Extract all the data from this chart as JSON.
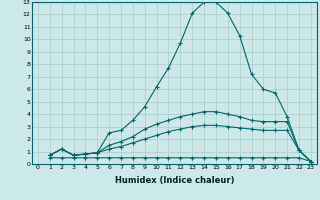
{
  "xlabel": "Humidex (Indice chaleur)",
  "ylabel": "",
  "bg_color": "#cce8e8",
  "grid_color": "#aacccc",
  "line_color": "#006868",
  "xlim": [
    -0.5,
    23.5
  ],
  "ylim": [
    0,
    13
  ],
  "xticks": [
    0,
    1,
    2,
    3,
    4,
    5,
    6,
    7,
    8,
    9,
    10,
    11,
    12,
    13,
    14,
    15,
    16,
    17,
    18,
    19,
    20,
    21,
    22,
    23
  ],
  "yticks": [
    0,
    1,
    2,
    3,
    4,
    5,
    6,
    7,
    8,
    9,
    10,
    11,
    12,
    13
  ],
  "line1_x": [
    1,
    2,
    3,
    4,
    5,
    6,
    7,
    8,
    9,
    10,
    11,
    12,
    13,
    14,
    15,
    16,
    17,
    18,
    19,
    20,
    21,
    22,
    23
  ],
  "line1_y": [
    0.7,
    1.2,
    0.7,
    0.8,
    0.9,
    2.5,
    2.7,
    3.5,
    4.6,
    6.2,
    7.7,
    9.7,
    12.1,
    13.0,
    13.0,
    12.1,
    10.3,
    7.2,
    6.0,
    5.7,
    3.8,
    1.1,
    0.2
  ],
  "line2_x": [
    1,
    2,
    3,
    4,
    5,
    6,
    7,
    8,
    9,
    10,
    11,
    12,
    13,
    14,
    15,
    16,
    17,
    18,
    19,
    20,
    21,
    22,
    23
  ],
  "line2_y": [
    0.7,
    1.2,
    0.7,
    0.8,
    0.9,
    1.5,
    1.8,
    2.2,
    2.8,
    3.2,
    3.5,
    3.8,
    4.0,
    4.2,
    4.2,
    4.0,
    3.8,
    3.5,
    3.4,
    3.4,
    3.4,
    1.1,
    0.2
  ],
  "line3_x": [
    1,
    2,
    3,
    4,
    5,
    6,
    7,
    8,
    9,
    10,
    11,
    12,
    13,
    14,
    15,
    16,
    17,
    18,
    19,
    20,
    21,
    22,
    23
  ],
  "line3_y": [
    0.7,
    1.2,
    0.7,
    0.8,
    0.9,
    1.2,
    1.4,
    1.7,
    2.0,
    2.3,
    2.6,
    2.8,
    3.0,
    3.1,
    3.1,
    3.0,
    2.9,
    2.8,
    2.7,
    2.7,
    2.7,
    1.1,
    0.2
  ],
  "line4_x": [
    1,
    2,
    3,
    4,
    5,
    6,
    7,
    8,
    9,
    10,
    11,
    12,
    13,
    14,
    15,
    16,
    17,
    18,
    19,
    20,
    21,
    22,
    23
  ],
  "line4_y": [
    0.5,
    0.5,
    0.5,
    0.5,
    0.5,
    0.5,
    0.5,
    0.5,
    0.5,
    0.5,
    0.5,
    0.5,
    0.5,
    0.5,
    0.5,
    0.5,
    0.5,
    0.5,
    0.5,
    0.5,
    0.5,
    0.5,
    0.2
  ]
}
